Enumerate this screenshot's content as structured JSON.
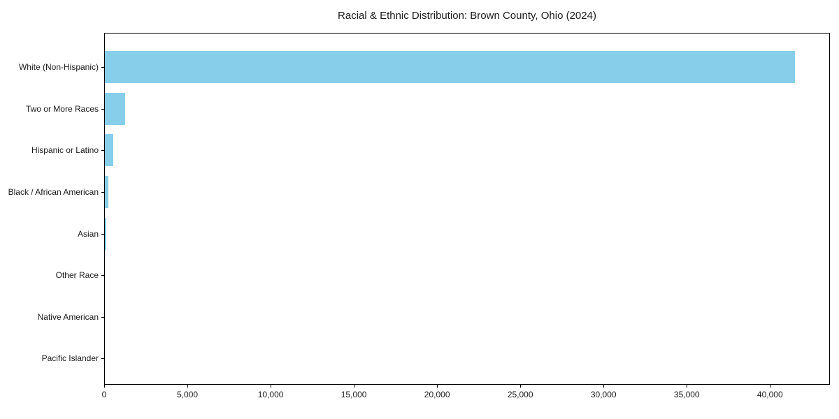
{
  "title": "Racial & Ethnic Distribution: Brown County, Ohio (2024)",
  "chart_data": {
    "type": "bar",
    "orientation": "horizontal",
    "title": "Racial & Ethnic Distribution: Brown County, Ohio (2024)",
    "xlabel": "",
    "ylabel": "",
    "categories": [
      "White (Non-Hispanic)",
      "Two or More Races",
      "Hispanic or Latino",
      "Black / African American",
      "Asian",
      "Other Race",
      "Native American",
      "Pacific Islander"
    ],
    "values": [
      41500,
      1260,
      560,
      265,
      120,
      40,
      15,
      5
    ],
    "xlim": [
      0,
      43600
    ],
    "xticks": [
      0,
      5000,
      10000,
      15000,
      20000,
      25000,
      30000,
      35000,
      40000
    ],
    "xtick_labels": [
      "0",
      "5,000",
      "10,000",
      "15,000",
      "20,000",
      "25,000",
      "30,000",
      "35,000",
      "40,000"
    ],
    "bar_color": "#87CEEB",
    "grid": false,
    "legend": null,
    "frame": "full-box"
  }
}
